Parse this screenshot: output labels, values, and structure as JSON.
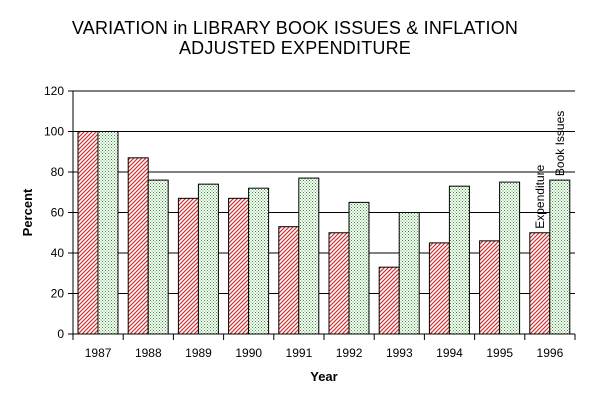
{
  "chart_data": {
    "type": "bar",
    "title": "VARIATION in LIBRARY BOOK ISSUES & INFLATION",
    "subtitle": "ADJUSTED EXPENDITURE",
    "xlabel": "Year",
    "ylabel": "Percent",
    "ylim": [
      0,
      120
    ],
    "yticks": [
      0,
      20,
      40,
      60,
      80,
      100,
      120
    ],
    "grid": true,
    "legend": "vertical labels over last category",
    "categories": [
      "1987",
      "1988",
      "1989",
      "1990",
      "1991",
      "1992",
      "1993",
      "1994",
      "1995",
      "1996"
    ],
    "series": [
      {
        "name": "Expenditure",
        "color": "#cc3333",
        "pattern": "diagonal-hatch",
        "values": [
          100,
          87,
          67,
          67,
          53,
          50,
          33,
          45,
          46,
          50
        ]
      },
      {
        "name": "Book Issues",
        "color": "#339933",
        "pattern": "dots",
        "values": [
          100,
          76,
          74,
          72,
          77,
          65,
          60,
          73,
          75,
          76
        ]
      }
    ]
  }
}
